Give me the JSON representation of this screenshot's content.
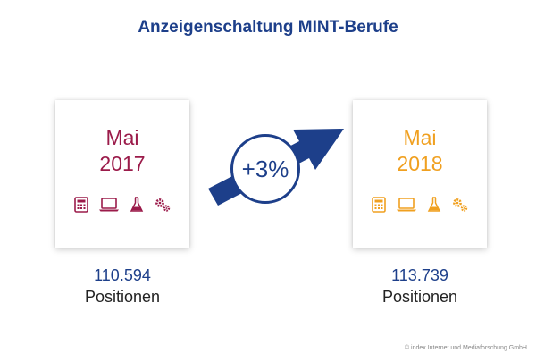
{
  "title": "Anzeigenschaltung MINT-Berufe",
  "colors": {
    "brand_blue": "#1d3f8a",
    "year_2017": "#9b1b4a",
    "year_2018": "#f0a020"
  },
  "cards": [
    {
      "month": "Mai",
      "year": "2017",
      "count": "110.594",
      "unit": "Positionen",
      "icons": [
        "calculator-icon",
        "laptop-icon",
        "flask-icon",
        "gears-icon"
      ]
    },
    {
      "month": "Mai",
      "year": "2018",
      "count": "113.739",
      "unit": "Positionen",
      "icons": [
        "calculator-icon",
        "laptop-icon",
        "flask-icon",
        "gears-icon"
      ]
    }
  ],
  "growth": {
    "label": "+3%"
  },
  "copyright": "© index Internet und Mediaforschung GmbH"
}
